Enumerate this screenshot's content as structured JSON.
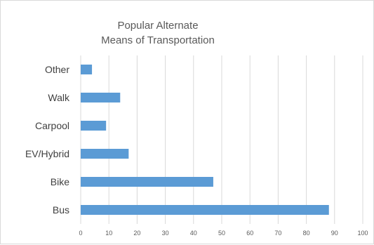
{
  "chart_data": {
    "type": "bar",
    "orientation": "horizontal",
    "title_lines": [
      "Popular Alternate",
      "Means of Transportation"
    ],
    "categories": [
      "Other",
      "Walk",
      "Carpool",
      "EV/Hybrid",
      "Bike",
      "Bus"
    ],
    "values": [
      4,
      14,
      9,
      17,
      47,
      88
    ],
    "xlim": [
      0,
      100
    ],
    "x_ticks": [
      0,
      10,
      20,
      30,
      40,
      50,
      60,
      70,
      80,
      90,
      100
    ],
    "xlabel": "",
    "ylabel": "",
    "grid": "vertical",
    "legend": "none",
    "bar_color": "#5b9bd5",
    "grid_color": "#d9d9d9"
  }
}
